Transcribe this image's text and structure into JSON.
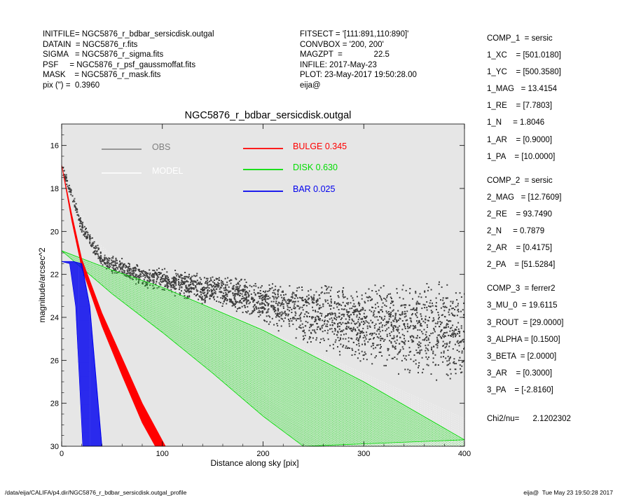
{
  "header_left": [
    "INITFILE= NGC5876_r_bdbar_sersicdisk.outgal",
    "DATAIN  = NGC5876_r.fits",
    "SIGMA   = NGC5876_r_sigma.fits",
    "PSF     = NGC5876_r_psf_gaussmoffat.fits",
    "MASK    = NGC5876_r_mask.fits",
    "pix (\") =  0.3960"
  ],
  "header_mid": [
    "FITSECT = '[111:891,110:890]'",
    "CONVBOX = '200, 200'",
    "MAGZPT  =              22.5",
    "INFILE: 2017-May-23",
    "PLOT: 23-May-2017 19:50:28.00",
    "eija@"
  ],
  "components": [
    {
      "lines": [
        "COMP_1  = sersic",
        "1_XC    = [501.0180]",
        "1_YC    = [500.3580]",
        "1_MAG   = 13.4154",
        "1_RE    = [7.7803]",
        "1_N     = 1.8046",
        "1_AR    = [0.9000]",
        "1_PA    = [10.0000]"
      ]
    },
    {
      "lines": [
        "COMP_2  = sersic",
        "2_MAG   = [12.7609]",
        "2_RE    = 93.7490",
        "2_N     = 0.7879",
        "2_AR    = [0.4175]",
        "2_PA    = [51.5284]"
      ]
    },
    {
      "lines": [
        "COMP_3  = ferrer2",
        "3_MU_0  = 19.6115",
        "3_ROUT  = [29.0000]",
        "3_ALPHA = [0.1500]",
        "3_BETA  = [2.0000]",
        "3_AR    = [0.3000]",
        "3_PA    = [-2.8160]"
      ]
    }
  ],
  "chi2_line": "Chi2/nu=      2.1202302",
  "footer_left": "/data/eija/CALIFA/p4.dir/NGC5876_r_bdbar_sersicdisk.outgal_profile",
  "footer_right": "eija@  Tue May 23 19:50:28 2017",
  "chart_data": {
    "type": "scatter",
    "title": "NGC5876_r_bdbar_sersicdisk.outgal",
    "xlabel": "Distance along sky [pix]",
    "ylabel": "magnitude/arcsec^2",
    "xlim": [
      0,
      400
    ],
    "ylim": [
      30,
      15
    ],
    "y_inverted": true,
    "xticks": [
      0,
      100,
      200,
      300,
      400
    ],
    "yticks": [
      16,
      18,
      20,
      22,
      24,
      26,
      28,
      30
    ],
    "background": "#e6e6e6",
    "legend": [
      {
        "label": "OBS",
        "color": "#7f7f7f"
      },
      {
        "label": "MODEL",
        "color": "#ffffff"
      },
      {
        "label": "BULGE",
        "value": "0.345",
        "color": "#ff0000"
      },
      {
        "label": "DISK",
        "value": "0.630",
        "color": "#00dd00"
      },
      {
        "label": "BAR",
        "value": "0.025",
        "color": "#0000ee"
      }
    ],
    "series": [
      {
        "name": "OBS",
        "kind": "point-cloud",
        "color": "#3c3c3c",
        "profile": [
          [
            0,
            17.0
          ],
          [
            20,
            19.8
          ],
          [
            40,
            21.3
          ],
          [
            80,
            22.0
          ],
          [
            120,
            22.4
          ],
          [
            160,
            22.7
          ],
          [
            200,
            23.2
          ],
          [
            240,
            23.7
          ],
          [
            280,
            24.0
          ],
          [
            320,
            24.2
          ],
          [
            360,
            24.4
          ],
          [
            400,
            24.5
          ]
        ],
        "spread": [
          [
            0,
            0.3
          ],
          [
            100,
            0.6
          ],
          [
            200,
            1.0
          ],
          [
            260,
            1.6
          ],
          [
            320,
            2.2
          ],
          [
            400,
            2.6
          ]
        ]
      },
      {
        "name": "MODEL",
        "kind": "band",
        "color": "#ffffff",
        "upper": [
          [
            0,
            17.0
          ],
          [
            30,
            20.2
          ],
          [
            60,
            21.6
          ],
          [
            150,
            23.5
          ],
          [
            300,
            26.6
          ],
          [
            400,
            28.7
          ]
        ],
        "lower": [
          [
            0,
            17.0
          ],
          [
            30,
            20.6
          ],
          [
            60,
            22.4
          ],
          [
            150,
            25.6
          ],
          [
            220,
            28.4
          ],
          [
            260,
            30.0
          ]
        ]
      },
      {
        "name": "BULGE",
        "kind": "band",
        "color": "#ff0000",
        "upper": [
          [
            0,
            16.9
          ],
          [
            10,
            19.2
          ],
          [
            20,
            21.3
          ],
          [
            40,
            23.8
          ],
          [
            60,
            25.9
          ],
          [
            80,
            28.0
          ],
          [
            103,
            30.0
          ]
        ],
        "lower": [
          [
            0,
            16.9
          ],
          [
            10,
            19.5
          ],
          [
            20,
            21.7
          ],
          [
            40,
            24.4
          ],
          [
            60,
            26.7
          ],
          [
            80,
            28.9
          ],
          [
            93,
            30.0
          ]
        ]
      },
      {
        "name": "DISK",
        "kind": "band",
        "color": "#00dd00",
        "upper": [
          [
            0,
            20.9
          ],
          [
            50,
            21.8
          ],
          [
            100,
            22.6
          ],
          [
            200,
            24.6
          ],
          [
            300,
            27.0
          ],
          [
            400,
            29.7
          ]
        ],
        "lower": [
          [
            0,
            20.9
          ],
          [
            50,
            22.9
          ],
          [
            100,
            24.7
          ],
          [
            150,
            26.6
          ],
          [
            200,
            28.6
          ],
          [
            240,
            30.0
          ]
        ]
      },
      {
        "name": "BAR",
        "kind": "band",
        "color": "#0000ee",
        "upper": [
          [
            0,
            21.4
          ],
          [
            12,
            21.4
          ],
          [
            20,
            21.5
          ],
          [
            28,
            23.5
          ],
          [
            40,
            30.0
          ]
        ],
        "lower": [
          [
            0,
            21.4
          ],
          [
            8,
            21.5
          ],
          [
            14,
            23.5
          ],
          [
            21,
            30.0
          ]
        ]
      }
    ]
  }
}
